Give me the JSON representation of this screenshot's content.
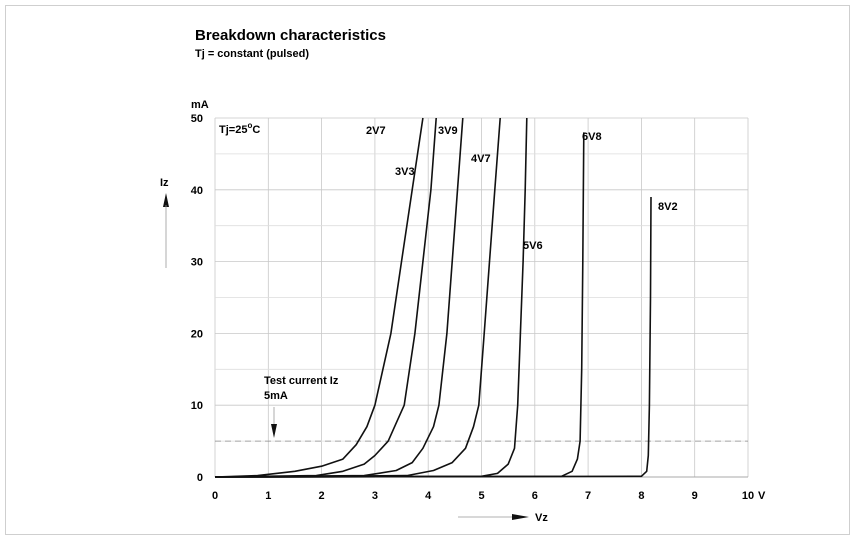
{
  "chart_data": {
    "type": "line",
    "title": "Breakdown characteristics",
    "subtitle": "Tj = constant (pulsed)",
    "ylabel": "Iz",
    "yunit": "mA",
    "xlabel": "Vz",
    "xunit": "V",
    "xlim": [
      0,
      10
    ],
    "ylim": [
      0,
      50
    ],
    "xticks": [
      "0",
      "1",
      "2",
      "3",
      "4",
      "5",
      "6",
      "7",
      "8",
      "9",
      "10"
    ],
    "yticks": [
      "0",
      "10",
      "20",
      "30",
      "40",
      "50"
    ],
    "grid": true,
    "condition_label": "Tj=25",
    "condition_sup": "o",
    "condition_unit": "C",
    "test_current": {
      "value": 5,
      "label_line1": "Test current Iz",
      "label_line2": "5mA"
    },
    "series": [
      {
        "name": "2V7",
        "points": [
          [
            0,
            0
          ],
          [
            0.8,
            0.2
          ],
          [
            1.5,
            0.8
          ],
          [
            2.0,
            1.5
          ],
          [
            2.4,
            2.5
          ],
          [
            2.65,
            4.5
          ],
          [
            2.85,
            7
          ],
          [
            3.0,
            10
          ],
          [
            3.3,
            20
          ],
          [
            3.5,
            30
          ],
          [
            3.7,
            40
          ],
          [
            3.9,
            50
          ]
        ]
      },
      {
        "name": "3V3",
        "points": [
          [
            0,
            0
          ],
          [
            1.9,
            0.2
          ],
          [
            2.4,
            0.8
          ],
          [
            2.8,
            1.8
          ],
          [
            3.0,
            3.0
          ],
          [
            3.25,
            5
          ],
          [
            3.4,
            7.5
          ],
          [
            3.55,
            10
          ],
          [
            3.75,
            20
          ],
          [
            3.9,
            30
          ],
          [
            4.05,
            40
          ],
          [
            4.15,
            50
          ]
        ]
      },
      {
        "name": "3V9",
        "points": [
          [
            0,
            0
          ],
          [
            2.8,
            0.2
          ],
          [
            3.4,
            0.9
          ],
          [
            3.7,
            2.0
          ],
          [
            3.9,
            4.0
          ],
          [
            4.1,
            7
          ],
          [
            4.2,
            10
          ],
          [
            4.35,
            20
          ],
          [
            4.45,
            30
          ],
          [
            4.55,
            40
          ],
          [
            4.65,
            50
          ]
        ]
      },
      {
        "name": "4V7",
        "points": [
          [
            0,
            0
          ],
          [
            3.6,
            0.2
          ],
          [
            4.1,
            0.9
          ],
          [
            4.45,
            2.0
          ],
          [
            4.7,
            4.0
          ],
          [
            4.85,
            7
          ],
          [
            4.95,
            10
          ],
          [
            5.05,
            20
          ],
          [
            5.15,
            30
          ],
          [
            5.25,
            40
          ],
          [
            5.35,
            50
          ]
        ]
      },
      {
        "name": "5V6",
        "points": [
          [
            0,
            0
          ],
          [
            5.0,
            0.1
          ],
          [
            5.3,
            0.5
          ],
          [
            5.5,
            1.8
          ],
          [
            5.62,
            4.0
          ],
          [
            5.68,
            10
          ],
          [
            5.73,
            20
          ],
          [
            5.78,
            30
          ],
          [
            5.82,
            40
          ],
          [
            5.85,
            50
          ]
        ]
      },
      {
        "name": "6V8",
        "points": [
          [
            0,
            0
          ],
          [
            6.5,
            0.1
          ],
          [
            6.7,
            0.8
          ],
          [
            6.8,
            2.5
          ],
          [
            6.85,
            5
          ],
          [
            6.88,
            15
          ],
          [
            6.9,
            30
          ],
          [
            6.92,
            48
          ]
        ]
      },
      {
        "name": "8V2",
        "points": [
          [
            0,
            0
          ],
          [
            8.0,
            0.1
          ],
          [
            8.1,
            0.8
          ],
          [
            8.13,
            3
          ],
          [
            8.15,
            10
          ],
          [
            8.17,
            25
          ],
          [
            8.18,
            39
          ]
        ]
      }
    ]
  }
}
